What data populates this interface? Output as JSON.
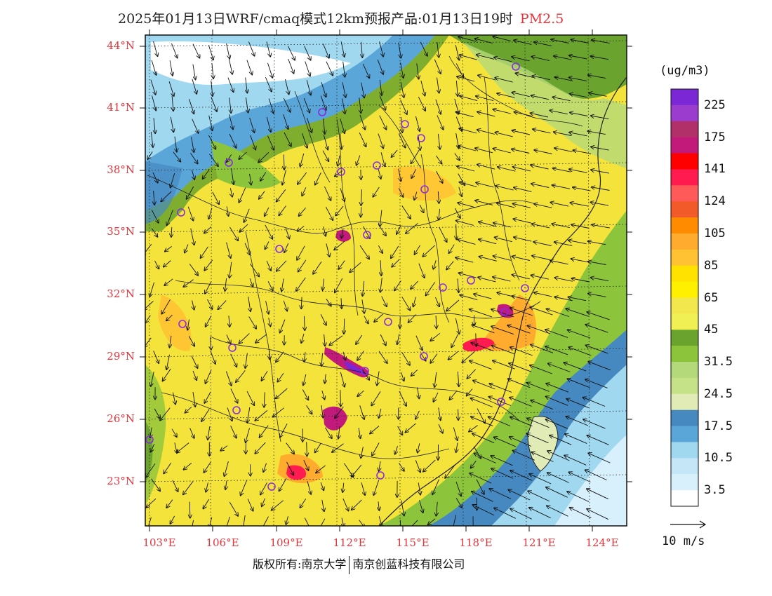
{
  "title": {
    "main": "2025年01月13日WRF/cmaq模式12km预报产品:01月13日19时",
    "species": "PM2.5"
  },
  "lat_labels": [
    "44°N",
    "41°N",
    "38°N",
    "35°N",
    "32°N",
    "29°N",
    "26°N",
    "23°N"
  ],
  "lon_labels": [
    "103°E",
    "106°E",
    "109°E",
    "112°E",
    "115°E",
    "118°E",
    "121°E",
    "124°E"
  ],
  "colorbar": {
    "unit": "(ug/m3)",
    "labels": [
      "225",
      "175",
      "141",
      "124",
      "105",
      "85",
      "65",
      "45",
      "31.5",
      "24.5",
      "17.5",
      "10.5",
      "3.5"
    ],
    "colors": [
      "#7b27d6",
      "#9c3ccf",
      "#b2306a",
      "#c21a7a",
      "#ff0000",
      "#ff1a4f",
      "#ff5a5a",
      "#f35a2a",
      "#ff8c00",
      "#ffab2e",
      "#ffc233",
      "#ffe200",
      "#fff000",
      "#f2e84d",
      "#f0f055",
      "#6aa42e",
      "#8cc43c",
      "#b4d97a",
      "#c6e288",
      "#e0ebb6",
      "#4689c0",
      "#5ba6d8",
      "#a0d8f0",
      "#c4e6f6",
      "#d8f0fb",
      "#ffffff"
    ]
  },
  "wind_reference": {
    "label": "10 m/s"
  },
  "copyright": {
    "left": "版权所有:南京大学",
    "right": "南京创蓝科技有限公司"
  },
  "palette": {
    "axis_label": "#e8333a",
    "city_marker": "#8a2be2"
  }
}
